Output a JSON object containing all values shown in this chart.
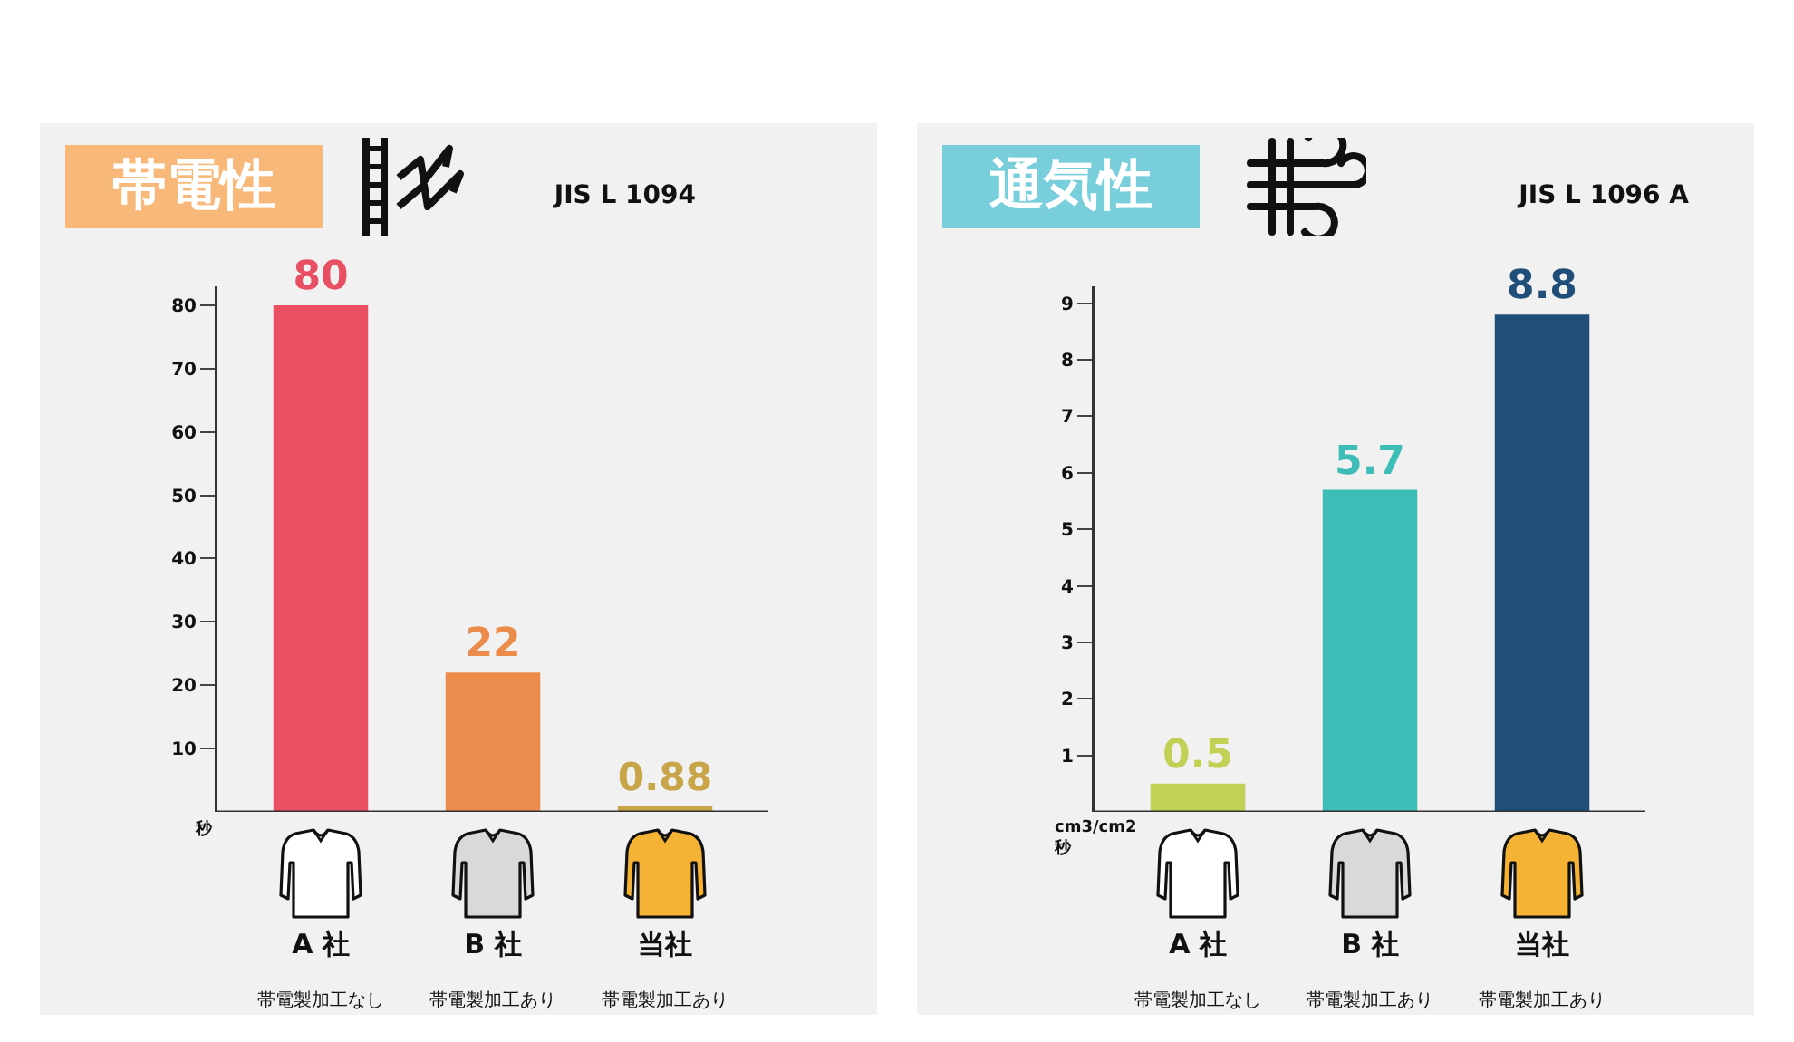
{
  "chart_data": [
    {
      "type": "bar",
      "title": "帯電性",
      "subtitle": "JIS L 1094",
      "ylabel": "秒",
      "categories": [
        "A 社",
        "B 社",
        "当社"
      ],
      "annotations": [
        "帯電製加工なし",
        "帯電製加工あり",
        "帯電製加工あり"
      ],
      "values": [
        80,
        22,
        0.88
      ],
      "colors": [
        "#e84f62",
        "#ec8c4c",
        "#c9a54a"
      ],
      "ylim": [
        0,
        83
      ],
      "yticks": [
        10,
        20,
        30,
        40,
        50,
        60,
        70,
        80
      ],
      "data_labels": true
    },
    {
      "type": "bar",
      "title": "通気性",
      "subtitle": "JIS L 1096 A",
      "ylabel": "cm3/cm2\n秒",
      "categories": [
        "A 社",
        "B 社",
        "当社"
      ],
      "annotations": [
        "帯電製加工なし",
        "帯電製加工あり",
        "帯電製加工あり"
      ],
      "values": [
        0.5,
        5.7,
        8.8
      ],
      "colors": [
        "#c2d155",
        "#3dbdb5",
        "#1f4e79"
      ],
      "ylim": [
        0,
        9.3
      ],
      "yticks": [
        1,
        2,
        3,
        4,
        5,
        6,
        7,
        8,
        9
      ],
      "data_labels": true
    }
  ]
}
